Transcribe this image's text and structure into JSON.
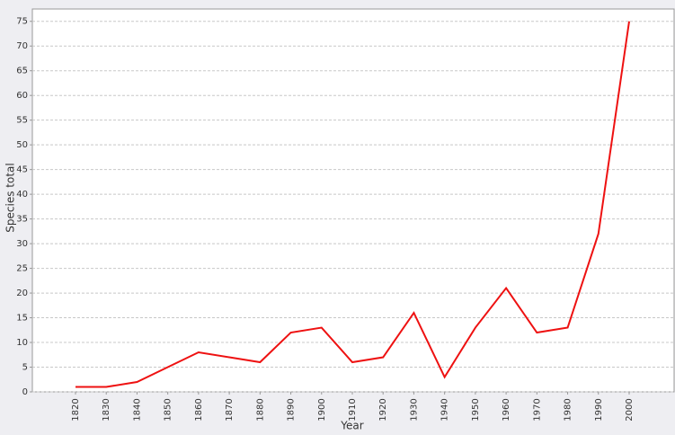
{
  "chart_data": {
    "type": "line",
    "x_label": "Year",
    "y_label": "Species total",
    "categories": [
      "1820",
      "1830",
      "1840",
      "1850",
      "1860",
      "1870",
      "1880",
      "1890",
      "1900",
      "1910",
      "1920",
      "1930",
      "1940",
      "1950",
      "1960",
      "1970",
      "1980",
      "1990",
      "2000"
    ],
    "series": [
      {
        "name": "Species total",
        "color": "#ee1111",
        "values": [
          1,
          1,
          2,
          5,
          8,
          7,
          6,
          12,
          13,
          6,
          7,
          16,
          3,
          13,
          21,
          12,
          13,
          32,
          75
        ]
      }
    ],
    "ylim": [
      0,
      77.5
    ],
    "yticks": [
      0,
      5,
      10,
      15,
      20,
      25,
      30,
      35,
      40,
      45,
      50,
      55,
      60,
      65,
      70,
      75
    ],
    "grid": true
  }
}
